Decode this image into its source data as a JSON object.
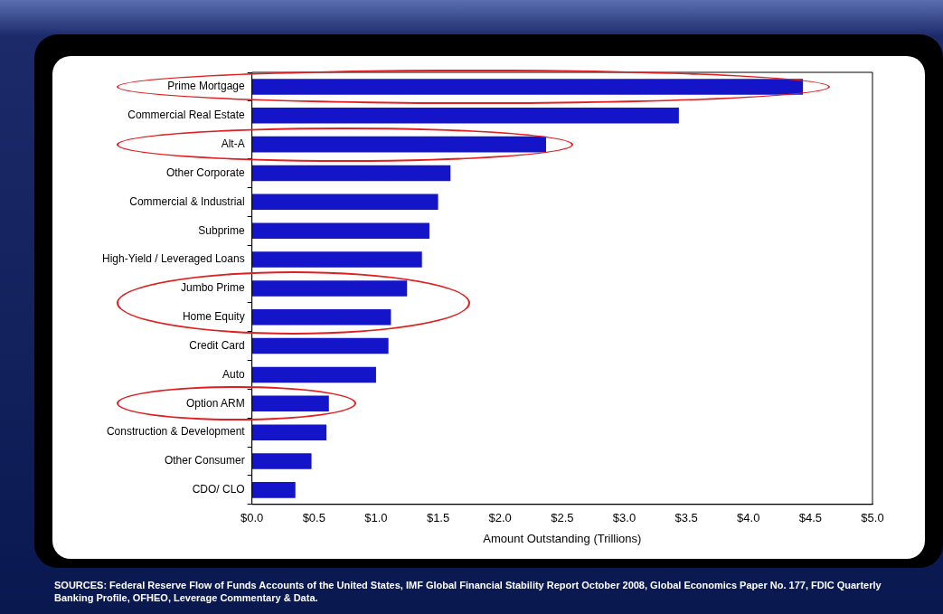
{
  "chart_data": {
    "type": "bar",
    "orientation": "horizontal",
    "categories": [
      "Prime Mortgage",
      "Commercial Real Estate",
      "Alt-A",
      "Other Corporate",
      "Commercial & Industrial",
      "Subprime",
      "High-Yield / Leveraged Loans",
      "Jumbo Prime",
      "Home Equity",
      "Credit Card",
      "Auto",
      "Option ARM",
      "Construction & Development",
      "Other Consumer",
      "CDO/ CLO"
    ],
    "values": [
      4.44,
      3.44,
      2.37,
      1.6,
      1.5,
      1.43,
      1.37,
      1.25,
      1.12,
      1.1,
      1.0,
      0.62,
      0.6,
      0.48,
      0.35
    ],
    "color": "#1414c8",
    "xlim": [
      0,
      5
    ],
    "xticks": [
      {
        "value": 0,
        "label": "$0.0"
      },
      {
        "value": 0.5,
        "label": "$0.5"
      },
      {
        "value": 1,
        "label": "$1.0"
      },
      {
        "value": 1.5,
        "label": "$1.5"
      },
      {
        "value": 2,
        "label": "$2.0"
      },
      {
        "value": 2.5,
        "label": "$2.5"
      },
      {
        "value": 3,
        "label": "$3.0"
      },
      {
        "value": 3.5,
        "label": "$3.5"
      },
      {
        "value": 4,
        "label": "$4.0"
      },
      {
        "value": 4.5,
        "label": "$4.5"
      },
      {
        "value": 5,
        "label": "$5.0"
      }
    ],
    "xlabel": "Amount Outstanding (Trillions)",
    "grid": false,
    "legend": false,
    "annotations": [
      "SOURCES: Federal Reserve Flow of Funds Accounts of the United States, IMF Global Financial Stability Report October 2008, Global Economics Paper No. 177, FDIC Quarterly Banking Profile, OFHEO, Leverage Commentary & Data."
    ]
  }
}
